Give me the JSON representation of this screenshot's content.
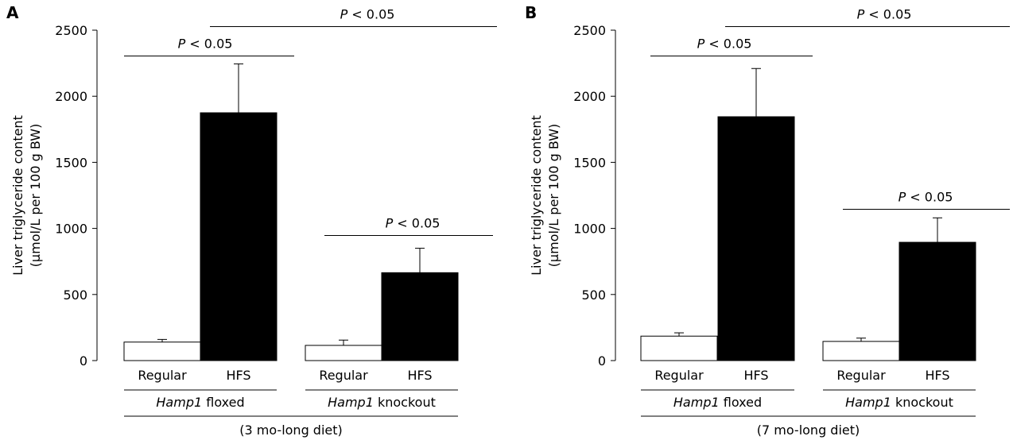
{
  "chart_data": [
    {
      "type": "bar",
      "panel_label": "A",
      "ylabel_line1": "Liver triglyceride content",
      "ylabel_line2": "(µmol/L per 100 g BW)",
      "ylim": [
        0,
        2500
      ],
      "yticks": [
        0,
        500,
        1000,
        1500,
        2000,
        2500
      ],
      "categories": [
        "Regular",
        "HFS",
        "Regular",
        "HFS"
      ],
      "values": [
        140,
        1875,
        115,
        665
      ],
      "errors": [
        20,
        370,
        40,
        185
      ],
      "bar_colors": [
        "#ffffff",
        "#000000",
        "#ffffff",
        "#000000"
      ],
      "groups": [
        {
          "italic": "Hamp1",
          "rest": " floxed"
        },
        {
          "italic": "Hamp1",
          "rest": " knockout"
        }
      ],
      "diet": "(3 mo-long diet)",
      "significance": [
        {
          "p_italic": "P",
          "p_rest": " < 0.05",
          "between": [
            0,
            1
          ]
        },
        {
          "p_italic": "P",
          "p_rest": " < 0.05",
          "between": [
            2,
            3
          ]
        },
        {
          "p_italic": "P",
          "p_rest": " < 0.05",
          "between": [
            1,
            3
          ]
        }
      ]
    },
    {
      "type": "bar",
      "panel_label": "B",
      "ylabel_line1": "Liver triglyceride content",
      "ylabel_line2": "(µmol/L per 100 g BW)",
      "ylim": [
        0,
        2500
      ],
      "yticks": [
        0,
        500,
        1000,
        1500,
        2000,
        2500
      ],
      "categories": [
        "Regular",
        "HFS",
        "Regular",
        "HFS"
      ],
      "values": [
        185,
        1845,
        145,
        895
      ],
      "errors": [
        25,
        365,
        25,
        185
      ],
      "bar_colors": [
        "#ffffff",
        "#000000",
        "#ffffff",
        "#000000"
      ],
      "groups": [
        {
          "italic": "Hamp1",
          "rest": " floxed"
        },
        {
          "italic": "Hamp1",
          "rest": " knockout"
        }
      ],
      "diet": "(7 mo-long diet)",
      "significance": [
        {
          "p_italic": "P",
          "p_rest": " < 0.05",
          "between": [
            0,
            1
          ]
        },
        {
          "p_italic": "P",
          "p_rest": " < 0.05",
          "between": [
            2,
            3
          ]
        },
        {
          "p_italic": "P",
          "p_rest": " < 0.05",
          "between": [
            1,
            3
          ]
        }
      ]
    }
  ]
}
